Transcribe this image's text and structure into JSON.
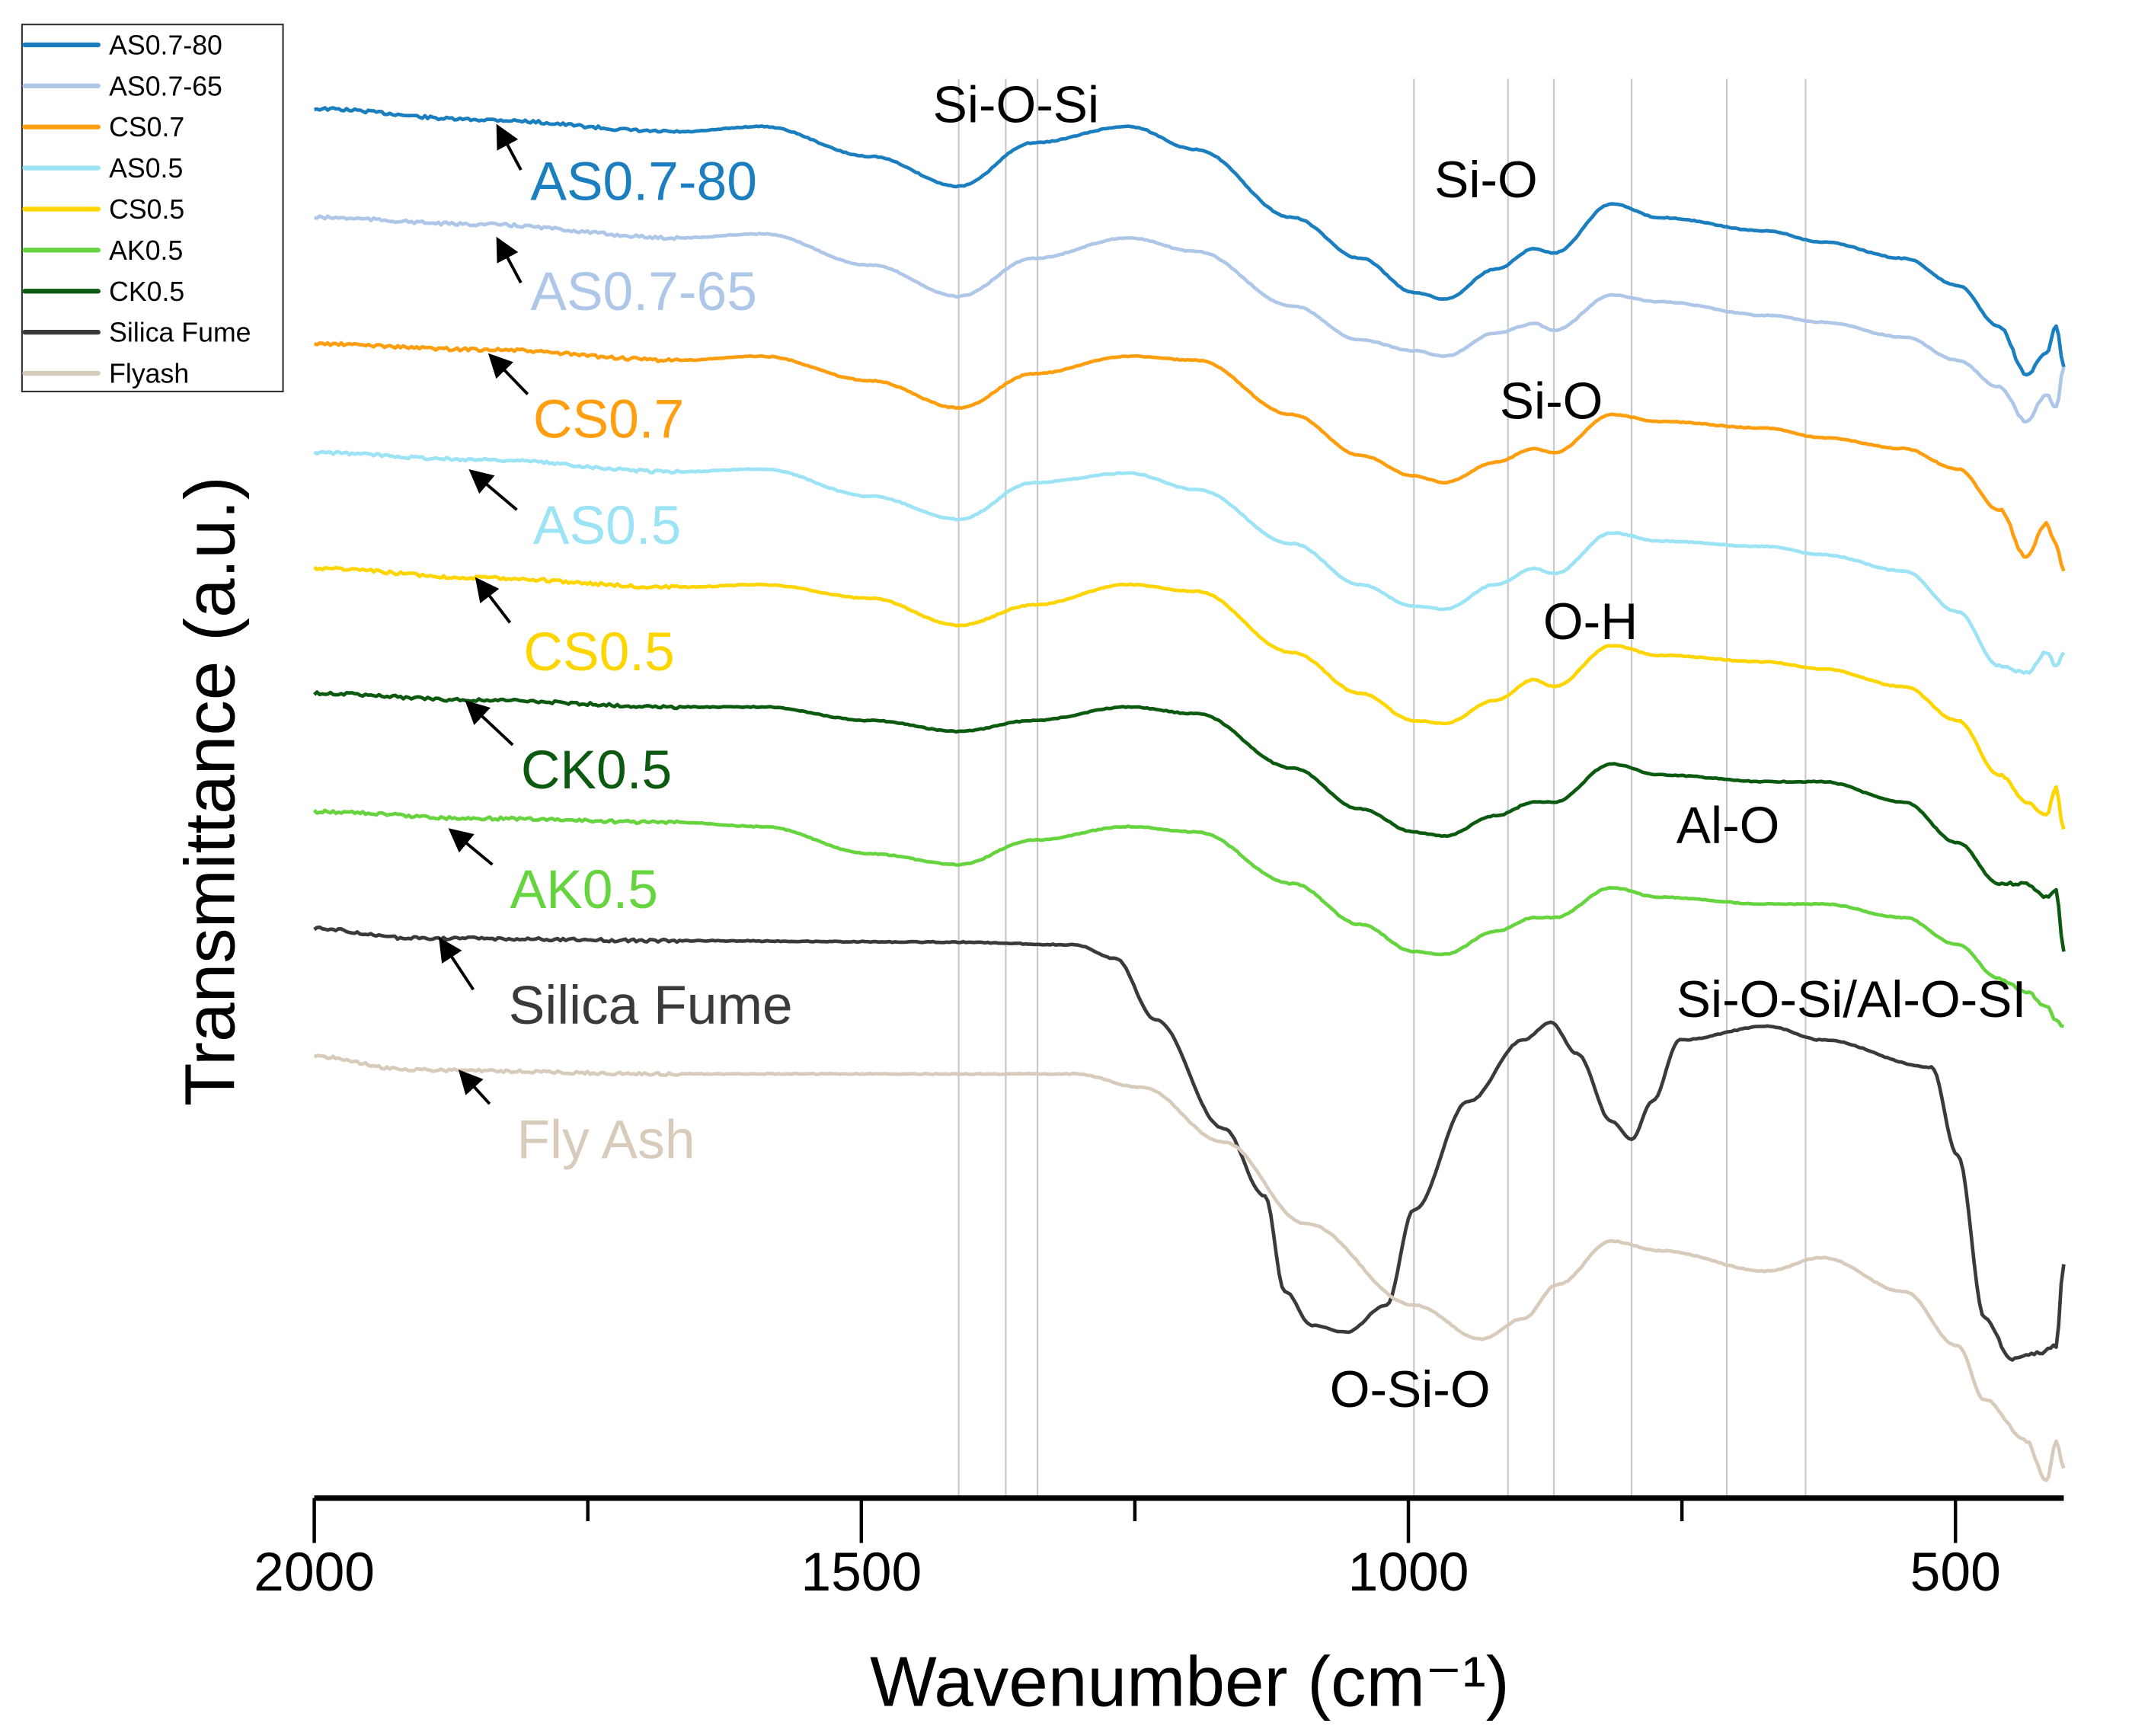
{
  "chart_data": {
    "type": "line",
    "title": "",
    "xlabel": "Wavenumber (cm⁻¹)",
    "ylabel": "Transmittance (a.u.)",
    "xlim": [
      2000,
      401
    ],
    "ylim": [
      0,
      11
    ],
    "x_ticks": [
      2000,
      1500,
      1000,
      500
    ],
    "x_tick_labels": [
      "2000",
      "1500",
      "1000",
      "500"
    ],
    "x_minor_ticks": [
      1750,
      1250,
      750
    ],
    "grid": false,
    "legend_placement": "top-left",
    "reference_lines": [
      1411,
      1368,
      1339,
      995,
      909,
      867,
      796,
      709,
      637
    ],
    "annotations": [
      "Si-O-Si",
      "Si-O",
      "Si-O",
      "O-H",
      "Al-O",
      "Si-O-Si/Al-O-SI",
      "O-Si-O"
    ],
    "series": [
      {
        "name": "AS0.7-80",
        "label": "AS0.7-80",
        "color": "#1a7ebf",
        "x": [
          2000,
          1852,
          1666,
          1591,
          1492,
          1411,
          1343,
          1256,
          1194,
          1106,
          1044,
          995,
          967,
          920,
          885,
          867,
          814,
          771,
          672,
          622,
          547,
          498,
          460,
          435,
          417,
          408,
          401
        ],
        "y": [
          10.22,
          10.14,
          10.05,
          10.09,
          9.87,
          9.65,
          9.97,
          10.09,
          9.92,
          9.42,
          9.12,
          8.87,
          8.82,
          9.04,
          9.19,
          9.16,
          9.52,
          9.42,
          9.32,
          9.24,
          9.12,
          8.92,
          8.62,
          8.27,
          8.42,
          8.62,
          8.32
        ]
      },
      {
        "name": "AS0.7-65",
        "label": "AS0.7-65",
        "color": "#aec7e8",
        "x": [
          2000,
          1852,
          1666,
          1591,
          1492,
          1411,
          1343,
          1256,
          1194,
          1106,
          1044,
          995,
          967,
          920,
          885,
          867,
          814,
          771,
          672,
          622,
          547,
          498,
          460,
          435,
          417,
          408,
          401
        ],
        "y": [
          9.42,
          9.37,
          9.27,
          9.3,
          9.07,
          8.84,
          9.12,
          9.27,
          9.17,
          8.77,
          8.52,
          8.44,
          8.4,
          8.57,
          8.64,
          8.59,
          8.85,
          8.8,
          8.7,
          8.65,
          8.54,
          8.37,
          8.17,
          7.92,
          8.12,
          8.02,
          8.32
        ]
      },
      {
        "name": "CS0.7",
        "label": "CS0.7",
        "color": "#ff9e0f",
        "x": [
          2000,
          1852,
          1666,
          1591,
          1492,
          1411,
          1343,
          1256,
          1194,
          1106,
          1044,
          995,
          967,
          920,
          885,
          867,
          814,
          771,
          672,
          622,
          547,
          498,
          460,
          435,
          417,
          408,
          401
        ],
        "y": [
          8.49,
          8.45,
          8.37,
          8.4,
          8.22,
          8.02,
          8.27,
          8.4,
          8.37,
          7.97,
          7.67,
          7.52,
          7.47,
          7.62,
          7.72,
          7.69,
          7.97,
          7.92,
          7.87,
          7.8,
          7.72,
          7.57,
          7.27,
          6.92,
          7.17,
          7.02,
          6.82
        ]
      },
      {
        "name": "AS0.5",
        "label": "AS0.5",
        "color": "#9be3f5",
        "x": [
          2000,
          1852,
          1666,
          1591,
          1492,
          1411,
          1343,
          1256,
          1194,
          1106,
          1044,
          995,
          967,
          920,
          885,
          867,
          814,
          771,
          672,
          622,
          547,
          498,
          460,
          435,
          417,
          408,
          401
        ],
        "y": [
          7.69,
          7.64,
          7.55,
          7.57,
          7.37,
          7.2,
          7.47,
          7.54,
          7.42,
          7.02,
          6.72,
          6.56,
          6.54,
          6.72,
          6.84,
          6.8,
          7.1,
          7.04,
          7.0,
          6.94,
          6.82,
          6.52,
          6.12,
          6.07,
          6.22,
          6.12,
          6.22
        ]
      },
      {
        "name": "CS0.5",
        "label": "CS0.5",
        "color": "#ffd500",
        "x": [
          2000,
          1852,
          1666,
          1591,
          1492,
          1411,
          1343,
          1256,
          1194,
          1106,
          1044,
          995,
          967,
          920,
          885,
          867,
          814,
          771,
          672,
          622,
          547,
          498,
          460,
          435,
          417,
          408,
          401
        ],
        "y": [
          6.84,
          6.77,
          6.7,
          6.72,
          6.62,
          6.42,
          6.57,
          6.72,
          6.67,
          6.22,
          5.92,
          5.72,
          5.7,
          5.87,
          6.02,
          5.97,
          6.27,
          6.2,
          6.15,
          6.1,
          5.97,
          5.72,
          5.32,
          5.12,
          5.02,
          5.22,
          4.92
        ]
      },
      {
        "name": "AK0.5",
        "label": "AK0.5",
        "color": "#66d43f",
        "x": [
          2000,
          1852,
          1666,
          1591,
          1492,
          1411,
          1343,
          1256,
          1194,
          1106,
          1044,
          995,
          967,
          920,
          885,
          867,
          814,
          771,
          672,
          622,
          547,
          498,
          460,
          435,
          417,
          408,
          401
        ],
        "y": [
          5.05,
          5.0,
          4.97,
          4.94,
          4.74,
          4.66,
          4.84,
          4.94,
          4.9,
          4.52,
          4.22,
          4.02,
          4.0,
          4.17,
          4.27,
          4.27,
          4.49,
          4.42,
          4.37,
          4.37,
          4.27,
          4.07,
          3.82,
          3.72,
          3.62,
          3.52,
          3.47
        ]
      },
      {
        "name": "CK0.5",
        "label": "CK0.5",
        "color": "#0b5a10",
        "x": [
          2000,
          1852,
          1666,
          1591,
          1492,
          1411,
          1343,
          1256,
          1194,
          1106,
          1044,
          995,
          967,
          920,
          885,
          867,
          814,
          771,
          672,
          622,
          547,
          498,
          460,
          435,
          417,
          408,
          401
        ],
        "y": [
          5.92,
          5.87,
          5.82,
          5.82,
          5.72,
          5.64,
          5.72,
          5.82,
          5.77,
          5.37,
          5.07,
          4.9,
          4.87,
          5.02,
          5.12,
          5.12,
          5.4,
          5.32,
          5.27,
          5.27,
          5.12,
          4.82,
          4.52,
          4.52,
          4.42,
          4.47,
          4.02
        ]
      },
      {
        "name": "Silica Fume",
        "label": "Silica Fume",
        "color": "#3a3a3a",
        "x": [
          2000,
          1914,
          1666,
          1417,
          1305,
          1268,
          1231,
          1169,
          1131,
          1113,
          1088,
          1057,
          1020,
          995,
          945,
          895,
          870,
          846,
          814,
          796,
          777,
          752,
          672,
          622,
          522,
          498,
          473,
          448,
          423,
          408,
          401
        ],
        "y": [
          4.19,
          4.12,
          4.1,
          4.09,
          4.07,
          3.97,
          3.52,
          2.72,
          2.22,
          1.52,
          1.27,
          1.22,
          1.42,
          2.12,
          2.92,
          3.37,
          3.5,
          3.27,
          2.77,
          2.64,
          2.92,
          3.37,
          3.47,
          3.37,
          3.17,
          2.52,
          1.32,
          1.02,
          1.07,
          1.12,
          1.72
        ]
      },
      {
        "name": "Flyash",
        "label": "Fly Ash",
        "color": "#d8cbbb",
        "x": [
          2000,
          1914,
          1666,
          1417,
          1305,
          1243,
          1169,
          1094,
          995,
          933,
          895,
          864,
          814,
          771,
          672,
          622,
          547,
          498,
          473,
          435,
          417,
          408,
          401
        ],
        "y": [
          3.25,
          3.15,
          3.12,
          3.12,
          3.12,
          3.02,
          2.62,
          2.02,
          1.42,
          1.17,
          1.32,
          1.57,
          1.89,
          1.82,
          1.67,
          1.77,
          1.52,
          1.12,
          0.72,
          0.42,
          0.12,
          0.42,
          0.22
        ]
      }
    ]
  }
}
